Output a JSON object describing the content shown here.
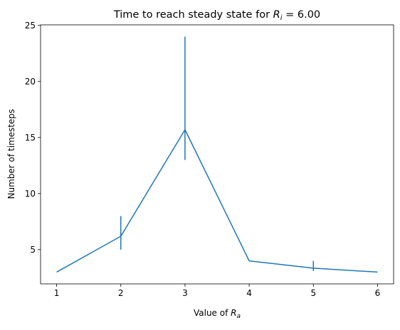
{
  "chart_data": {
    "type": "line",
    "title": "Time to reach steady state for R_i = 6.00",
    "title_parts": {
      "prefix": "Time to reach steady state for ",
      "var": "R",
      "sub": "i",
      "suffix": " = 6.00"
    },
    "xlabel_parts": {
      "prefix": "Value of ",
      "var": "R",
      "sub": "a"
    },
    "ylabel": "Number of timesteps",
    "x": [
      1,
      2,
      3,
      4,
      5,
      6
    ],
    "series": [
      {
        "values": [
          3,
          6.2,
          15.7,
          4.0,
          3.35,
          3.0
        ],
        "err_low": [
          3,
          5.0,
          13.0,
          4.0,
          3.1,
          3.0
        ],
        "err_high": [
          3,
          8.0,
          24.0,
          4.0,
          4.0,
          3.0
        ],
        "color": "#1f77b4"
      }
    ],
    "xlim": [
      0.75,
      6.25
    ],
    "ylim": [
      1.95,
      25.05
    ],
    "xticks": [
      1,
      2,
      3,
      4,
      5,
      6
    ],
    "yticks": [
      5,
      10,
      15,
      20,
      25
    ],
    "grid": false,
    "legend": "none"
  }
}
